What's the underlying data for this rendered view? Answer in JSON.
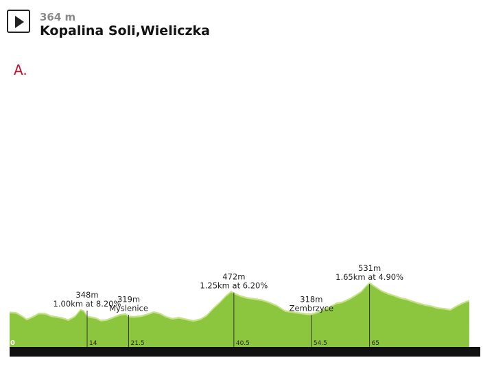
{
  "header": {
    "altitude": "364 m",
    "location": "Kopalina Soli,Wieliczka",
    "play_icon": "play-icon"
  },
  "marker": "A.",
  "chart_data": {
    "type": "area",
    "xlabel": "",
    "ylabel": "",
    "xlim": [
      0,
      85
    ],
    "ylim": [
      0,
      700
    ],
    "colors": {
      "fill": "#8cc63f",
      "highlight": "#c7e08a",
      "base": "#111111",
      "line": "#333333"
    },
    "profile": {
      "x": [
        0,
        1.2,
        2.4,
        3.1,
        4.2,
        5.3,
        6.4,
        7.5,
        8.7,
        9.5,
        10.6,
        11.8,
        12.8,
        13.4,
        14,
        14.7,
        15.6,
        16.5,
        17.6,
        18.7,
        19.9,
        21,
        21.5,
        22.5,
        23.6,
        24.8,
        26,
        27.1,
        28.2,
        29.4,
        30.6,
        31.8,
        33.2,
        34.5,
        35.6,
        36.7,
        37.9,
        39,
        40,
        40.5,
        41.6,
        42.8,
        44.2,
        45.6,
        47,
        48.4,
        49.7,
        51.1,
        52.4,
        53.8,
        54.5,
        55.6,
        56.7,
        57.9,
        59,
        60.1,
        61.3,
        62.4,
        63.5,
        64.4,
        65,
        66,
        67.1,
        68.3,
        69.4,
        70.5,
        71.6,
        72.8,
        73.9,
        75.1,
        76.2,
        77.3,
        78.5,
        79.6,
        80.7,
        81.9,
        83
      ],
      "y": [
        330,
        327,
        300,
        282,
        300,
        323,
        321,
        305,
        297,
        292,
        278,
        303,
        348,
        340,
        303,
        297,
        291,
        274,
        279,
        296,
        313,
        319,
        302,
        300,
        304,
        316,
        332,
        323,
        301,
        287,
        294,
        283,
        273,
        284,
        309,
        354,
        396,
        440,
        472,
        462,
        443,
        430,
        422,
        414,
        396,
        373,
        340,
        332,
        325,
        318,
        318,
        330,
        350,
        368,
        392,
        400,
        420,
        445,
        472,
        510,
        531,
        505,
        478,
        458,
        445,
        430,
        420,
        405,
        392,
        380,
        372,
        360,
        355,
        348,
        372,
        395,
        410
      ]
    },
    "points": [
      {
        "km": 14,
        "elev": 348,
        "tick": "14",
        "elev_label": "348m",
        "name": "",
        "detail": "1.00km at 8.20%"
      },
      {
        "km": 21.5,
        "elev": 319,
        "tick": "21.5",
        "elev_label": "319m",
        "name": "Myslenice",
        "detail": ""
      },
      {
        "km": 40.5,
        "elev": 472,
        "tick": "40.5",
        "elev_label": "472m",
        "name": "",
        "detail": "1.25km at 6.20%"
      },
      {
        "km": 54.5,
        "elev": 318,
        "tick": "54.5",
        "elev_label": "318m",
        "name": "Zembrzyce",
        "detail": ""
      },
      {
        "km": 65,
        "elev": 531,
        "tick": "65",
        "elev_label": "531m",
        "name": "",
        "detail": "1.65km at 4.90%"
      }
    ],
    "start_label": "0"
  }
}
